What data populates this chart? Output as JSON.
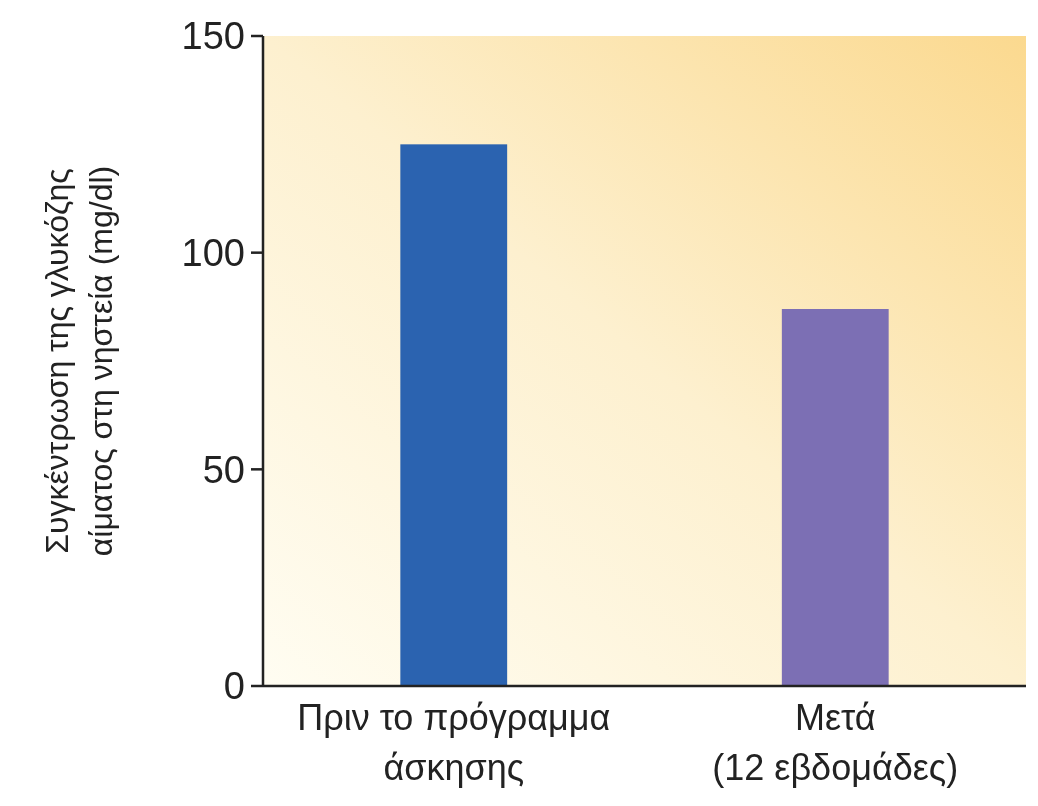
{
  "chart_data": {
    "type": "bar",
    "ylabel": "Συγκέντρωση της γλυκόζης αίματος στη νηστεία (mg/dl)",
    "categories": [
      "Πριν το πρόγραμμα άσκησης",
      "Μετά (12 εβδομάδες)"
    ],
    "values": [
      125,
      87
    ],
    "colors": [
      "#2b63b0",
      "#7c6fb4"
    ],
    "ylim": [
      0,
      150
    ],
    "yticks": [
      0,
      50,
      100,
      150
    ],
    "grid": false
  }
}
